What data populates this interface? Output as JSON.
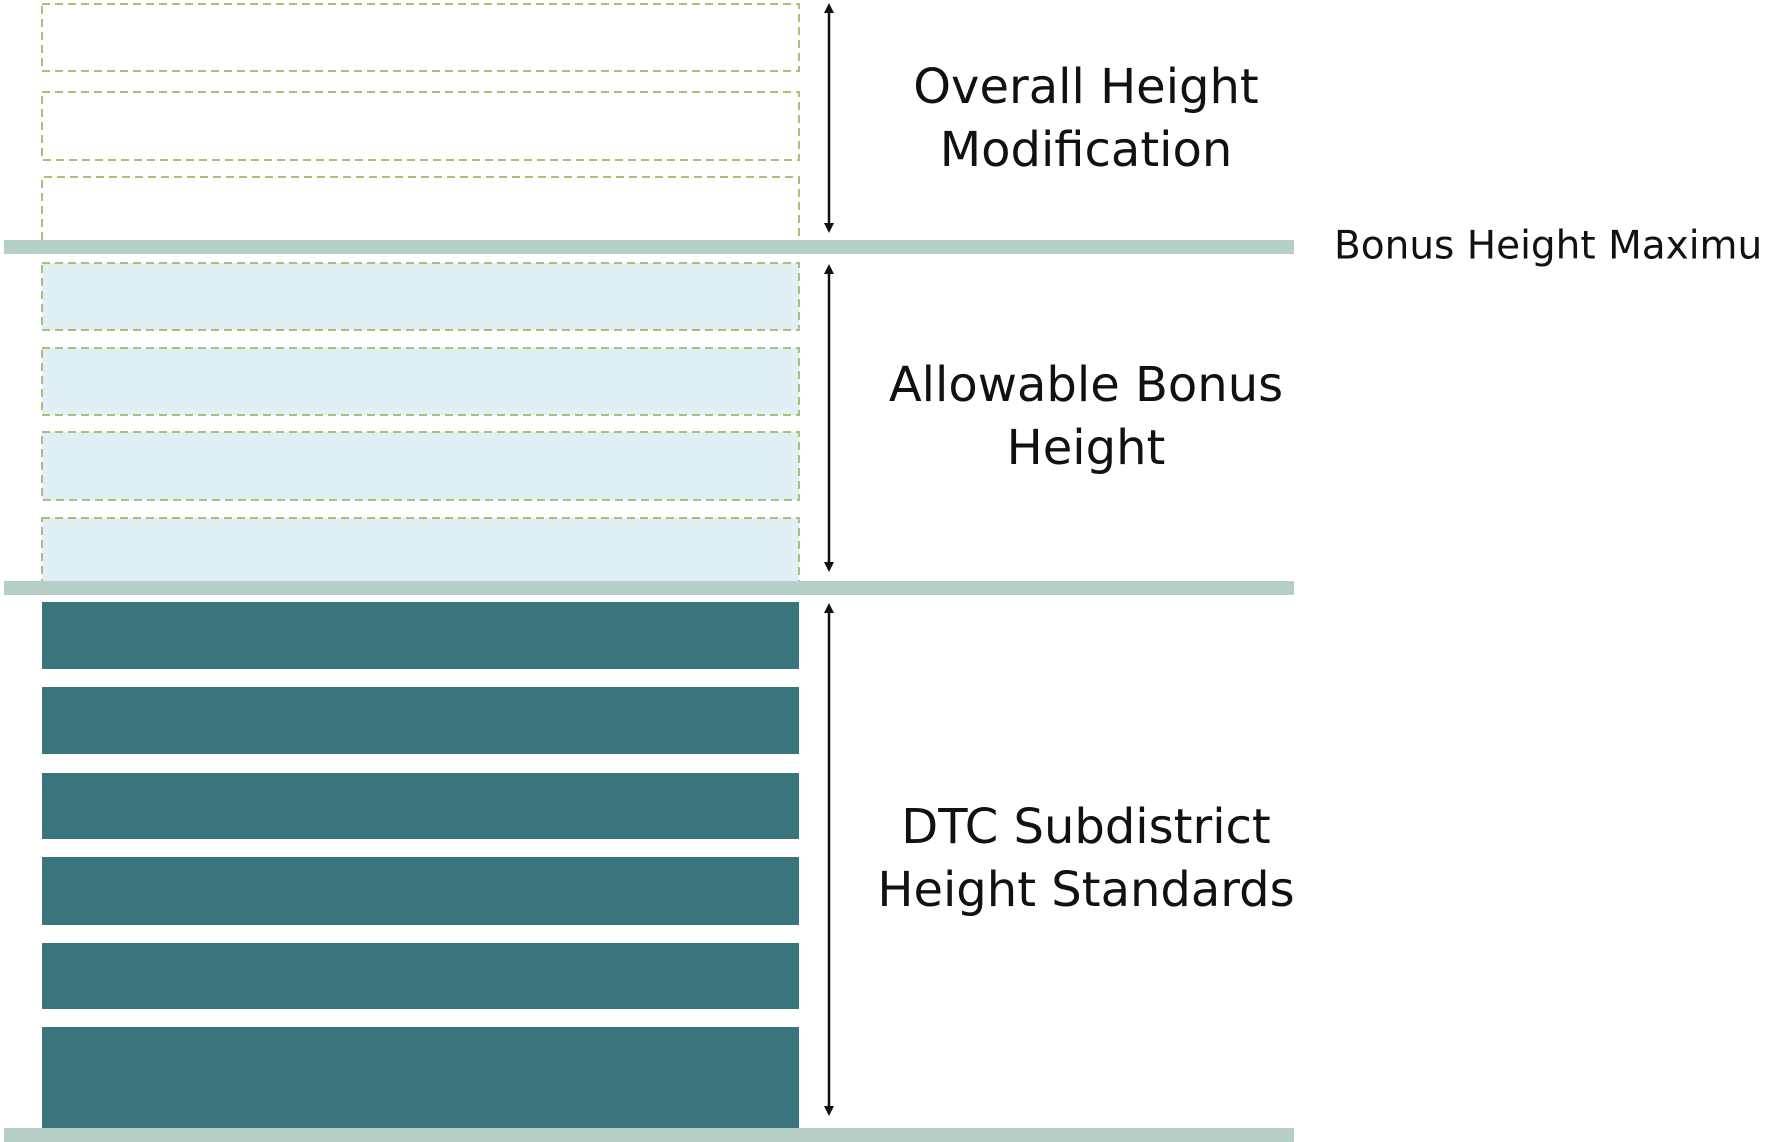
{
  "overall_height_modification": {
    "lines": [
      "Overall Height",
      "Modification"
    ]
  },
  "bonus_height_maximum": "Bonus Height Maximum",
  "allowable_bonus_height": {
    "lines": [
      "Allowable Bonus",
      "Height"
    ]
  },
  "dtc_subdistrict_height_standards": {
    "lines": [
      "DTC Subdistrict",
      "Height Standards"
    ]
  }
}
